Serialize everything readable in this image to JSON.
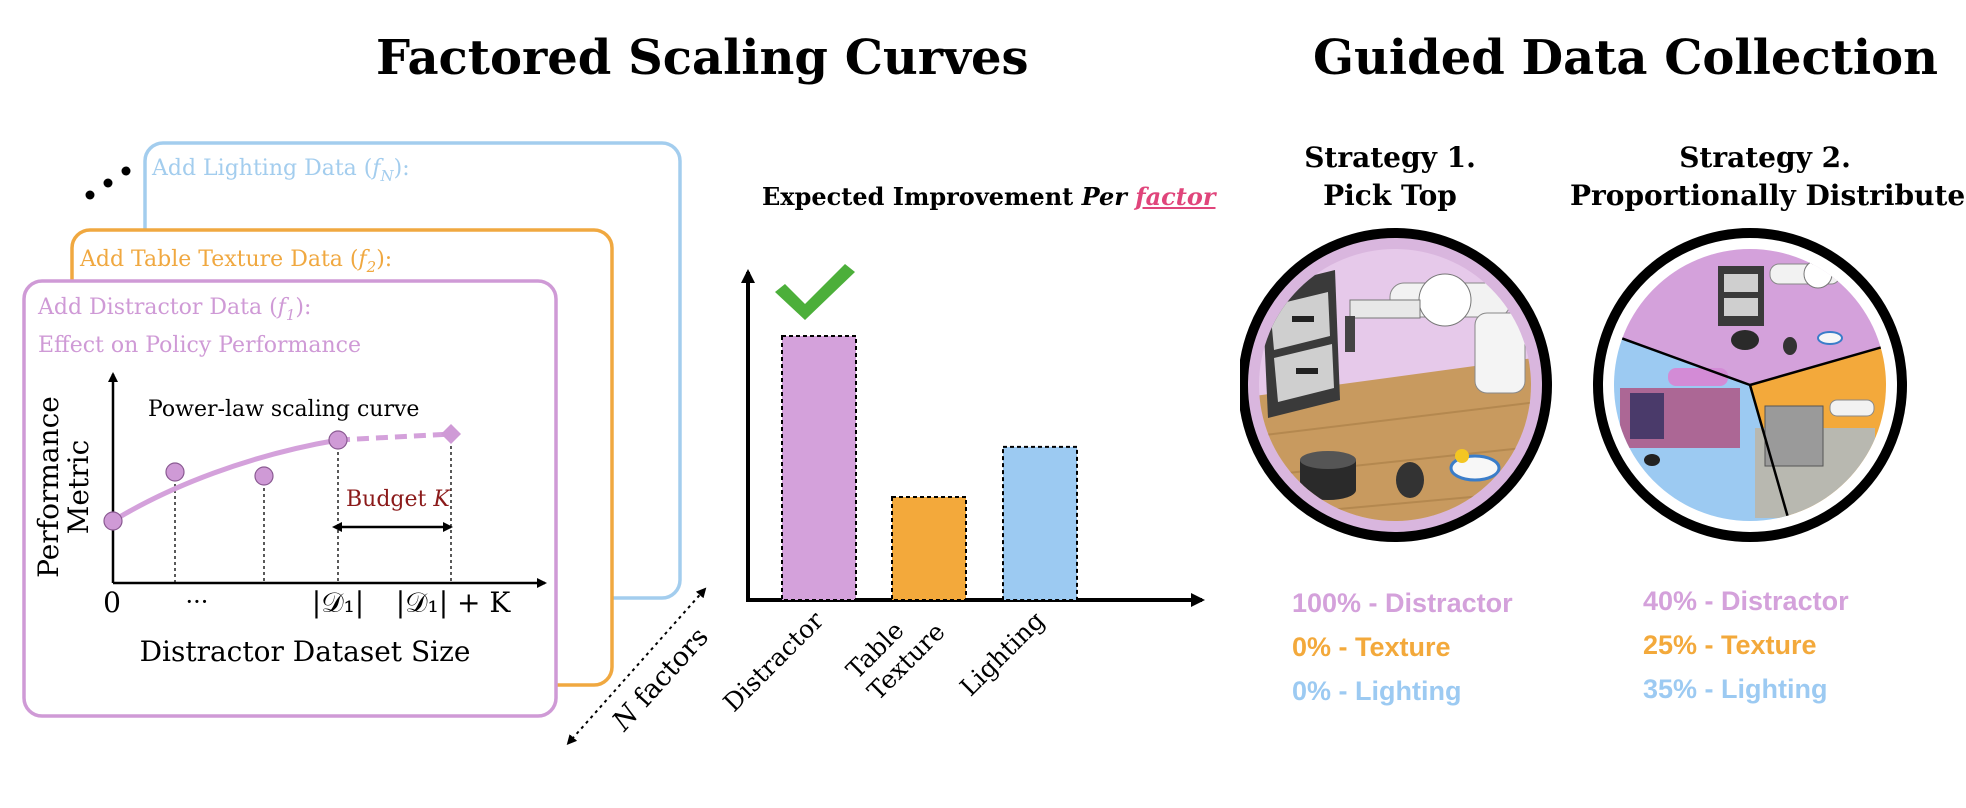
{
  "left_panel": {
    "title": "Factored Scaling Curves",
    "cards": [
      {
        "label": "Add Lighting Data (",
        "factor": "f",
        "sub": "N",
        "suffix": "):",
        "color": "#a3cdee"
      },
      {
        "label": "Add Table Texture Data (",
        "factor": "f",
        "sub": "2",
        "suffix": "):",
        "color": "#f0a840"
      },
      {
        "label": "Add Distractor Data (",
        "factor": "f",
        "sub": "1",
        "suffix": "):",
        "color": "#cf9ad6"
      }
    ],
    "card_subtitle": "Effect on Policy Performance",
    "curve": {
      "curve_label": "Power-law scaling curve",
      "budget_label": "Budget ",
      "budget_var": "K",
      "y_label_line1": "Performance",
      "y_label_line2": "Metric",
      "x_label": "Distractor Dataset Size",
      "x_ticks": [
        "0",
        "···",
        "|𝒟₁|",
        "|𝒟₁| + K"
      ]
    },
    "n_factors_label": "N factors"
  },
  "bar_panel": {
    "title_prefix": "Expected Improvement ",
    "title_italic": "Per ",
    "title_link": "factor",
    "link_color": "#e0457b",
    "check_color": "#4caf3a",
    "chart_data": {
      "type": "bar",
      "categories": [
        "Distractor",
        "Table\nTexture",
        "Lighting"
      ],
      "values": [
        100,
        39,
        58
      ],
      "colors": [
        "#d4a1db",
        "#f3a93b",
        "#9ccaf2"
      ],
      "ylim": [
        0,
        125
      ]
    }
  },
  "right_panel": {
    "title": "Guided Data Collection",
    "strategy1": {
      "line1": "Strategy 1.",
      "line2": "Pick Top"
    },
    "strategy2": {
      "line1": "Strategy 2.",
      "line2": "Proportionally Distribute"
    },
    "alloc1": [
      {
        "text": "100% - Distractor",
        "color": "#d4a1db"
      },
      {
        "text": "0% - Texture",
        "color": "#f3a93b"
      },
      {
        "text": "0% - Lighting",
        "color": "#9ccaf2"
      }
    ],
    "alloc2": [
      {
        "text": "40% - Distractor",
        "color": "#d4a1db"
      },
      {
        "text": "25% - Texture",
        "color": "#f3a93b"
      },
      {
        "text": "35% - Lighting",
        "color": "#9ccaf2"
      }
    ],
    "pie_shares": [
      40,
      25,
      35
    ]
  }
}
